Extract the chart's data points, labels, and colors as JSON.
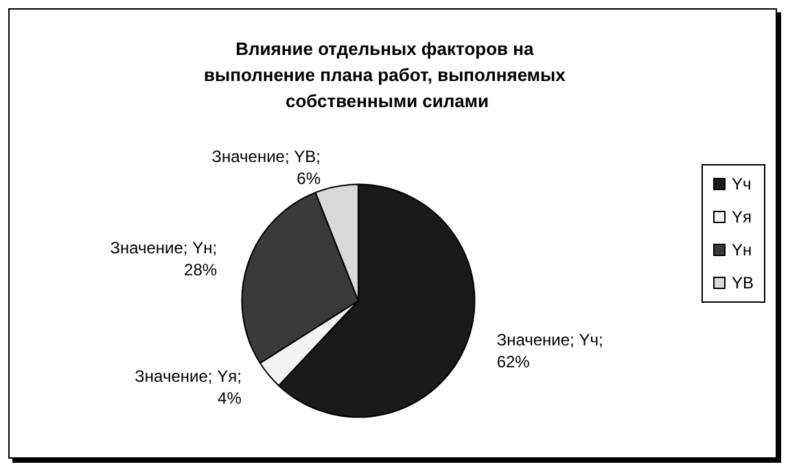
{
  "chart_data": {
    "type": "pie",
    "title": "Влияние отдельных факторов на выполнение плана работ, выполняемых собственными силами",
    "categories": [
      "Yч",
      "Yя",
      "Yн",
      "YB"
    ],
    "values": [
      62,
      4,
      28,
      6
    ],
    "colors": [
      "#1a1a1a",
      "#f2f2f2",
      "#3a3a3a",
      "#d9d9d9"
    ],
    "value_labels": [
      "Значение; Yч; 62%",
      "Значение; Yя; 4%",
      "Значение; Yн; 28%",
      "Значение; YB; 6%"
    ],
    "legend": "right"
  }
}
